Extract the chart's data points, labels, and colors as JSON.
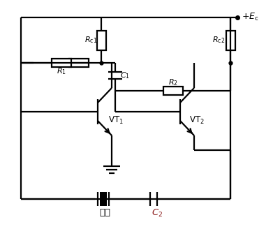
{
  "bg_color": "#ffffff",
  "line_color": "#000000",
  "c2_color": "#8B1A1A",
  "figsize": [
    3.91,
    3.48
  ],
  "dpi": 100
}
